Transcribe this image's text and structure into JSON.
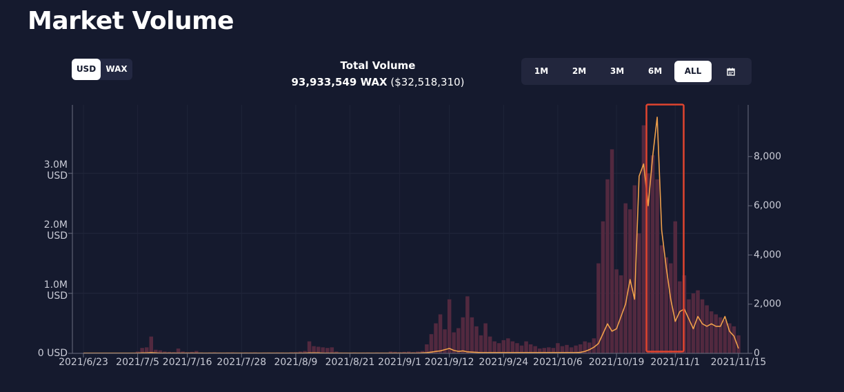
{
  "header": {
    "title": "Market Volume"
  },
  "currency_toggle": {
    "options": [
      "USD",
      "WAX"
    ],
    "selected": "USD"
  },
  "total": {
    "label": "Total Volume",
    "wax": "93,933,549 WAX",
    "usd": "($32,518,310)"
  },
  "range_buttons": {
    "options": [
      "1M",
      "2M",
      "3M",
      "6M",
      "ALL"
    ],
    "selected": "ALL"
  },
  "chart_data": {
    "type": "bar",
    "categories": [
      "2021/6/23",
      null,
      null,
      null,
      null,
      null,
      null,
      null,
      null,
      null,
      null,
      null,
      "2021/7/5",
      null,
      null,
      null,
      null,
      null,
      null,
      null,
      null,
      null,
      null,
      "2021/7/16",
      null,
      null,
      null,
      null,
      null,
      null,
      null,
      null,
      null,
      null,
      null,
      "2021/7/28",
      null,
      null,
      null,
      null,
      null,
      null,
      null,
      null,
      null,
      null,
      null,
      "2021/8/9",
      null,
      null,
      null,
      null,
      null,
      null,
      null,
      null,
      null,
      null,
      null,
      "2021/8/21",
      null,
      null,
      null,
      null,
      null,
      null,
      null,
      null,
      null,
      null,
      "2021/9/1",
      null,
      null,
      null,
      null,
      null,
      null,
      null,
      null,
      null,
      null,
      "2021/9/12",
      null,
      null,
      null,
      null,
      null,
      null,
      null,
      null,
      null,
      null,
      null,
      "2021/9/24",
      null,
      null,
      null,
      null,
      null,
      null,
      null,
      null,
      null,
      null,
      null,
      "2021/10/6",
      null,
      null,
      null,
      null,
      null,
      null,
      null,
      null,
      null,
      null,
      null,
      null,
      "2021/10/19",
      null,
      null,
      null,
      null,
      null,
      null,
      null,
      null,
      null,
      null,
      null,
      null,
      "2021/11/1",
      null,
      null,
      null,
      null,
      null,
      null,
      null,
      null,
      null,
      null,
      null,
      null,
      null,
      "2021/11/15"
    ],
    "series": [
      {
        "type": "bar",
        "color": "#52293f",
        "values": [
          8000,
          6000,
          5000,
          7000,
          6000,
          5000,
          8000,
          7000,
          6000,
          9000,
          10000,
          12000,
          30000,
          90000,
          100000,
          280000,
          60000,
          50000,
          30000,
          25000,
          20000,
          80000,
          30000,
          20000,
          25000,
          40000,
          15000,
          12000,
          15000,
          18000,
          14000,
          12000,
          15000,
          16000,
          13000,
          12000,
          15000,
          14000,
          16000,
          12000,
          14000,
          15000,
          13000,
          16000,
          14000,
          12000,
          18000,
          20000,
          30000,
          40000,
          200000,
          120000,
          110000,
          100000,
          90000,
          100000,
          30000,
          15000,
          14000,
          12000,
          15000,
          13000,
          14000,
          16000,
          12000,
          15000,
          14000,
          13000,
          30000,
          25000,
          20000,
          25000,
          30000,
          20000,
          30000,
          40000,
          150000,
          320000,
          500000,
          650000,
          400000,
          900000,
          350000,
          420000,
          600000,
          950000,
          600000,
          450000,
          300000,
          500000,
          280000,
          200000,
          170000,
          220000,
          250000,
          200000,
          170000,
          130000,
          200000,
          150000,
          120000,
          80000,
          90000,
          100000,
          90000,
          170000,
          120000,
          140000,
          100000,
          130000,
          150000,
          200000,
          180000,
          250000,
          1500000,
          2200000,
          2900000,
          3400000,
          1400000,
          1300000,
          2500000,
          2400000,
          2800000,
          2000000,
          3800000,
          3000000,
          3300000,
          2900000,
          1800000,
          1600000,
          1500000,
          2200000,
          1200000,
          1300000,
          900000,
          1000000,
          1050000,
          900000,
          800000,
          700000,
          650000,
          600000,
          550000,
          500000,
          450000,
          300000
        ]
      },
      {
        "type": "line",
        "axis": "y2",
        "color": "#f0a04b",
        "values": [
          10,
          10,
          10,
          10,
          10,
          10,
          10,
          10,
          10,
          10,
          10,
          10,
          10,
          20,
          20,
          30,
          20,
          10,
          10,
          10,
          10,
          10,
          10,
          10,
          10,
          10,
          10,
          10,
          10,
          10,
          10,
          10,
          10,
          10,
          10,
          10,
          10,
          10,
          10,
          10,
          10,
          10,
          10,
          10,
          10,
          10,
          10,
          10,
          10,
          10,
          20,
          20,
          20,
          10,
          10,
          10,
          10,
          10,
          10,
          10,
          10,
          10,
          10,
          10,
          10,
          10,
          10,
          10,
          10,
          10,
          10,
          10,
          10,
          10,
          10,
          20,
          30,
          50,
          80,
          100,
          150,
          200,
          120,
          80,
          100,
          60,
          50,
          40,
          30,
          30,
          30,
          30,
          30,
          30,
          30,
          30,
          30,
          30,
          30,
          30,
          30,
          30,
          30,
          30,
          30,
          30,
          30,
          30,
          30,
          30,
          40,
          80,
          150,
          250,
          400,
          800,
          1200,
          900,
          1000,
          1500,
          2000,
          3000,
          2200,
          7200,
          7700,
          6000,
          8000,
          9600,
          5000,
          3500,
          2200,
          1300,
          1700,
          1800,
          1400,
          1000,
          1500,
          1200,
          1100,
          1200,
          1100,
          1100,
          1500,
          900,
          700,
          200
        ]
      }
    ],
    "ylim": [
      0,
      4140000
    ],
    "yticks": [
      {
        "value": 0,
        "label": "0 USD"
      },
      {
        "value": 1000000,
        "label": "1.0M USD"
      },
      {
        "value": 2000000,
        "label": "2.0M USD"
      },
      {
        "value": 3000000,
        "label": "3.0M USD"
      }
    ],
    "y2lim": [
      0,
      10100
    ],
    "y2ticks": [
      0,
      {
        "value": 2000,
        "label": "2,000"
      },
      {
        "value": 4000,
        "label": "4,000"
      },
      {
        "value": 6000,
        "label": "6,000"
      },
      {
        "value": 8000,
        "label": "8,000"
      }
    ],
    "grid": true
  }
}
